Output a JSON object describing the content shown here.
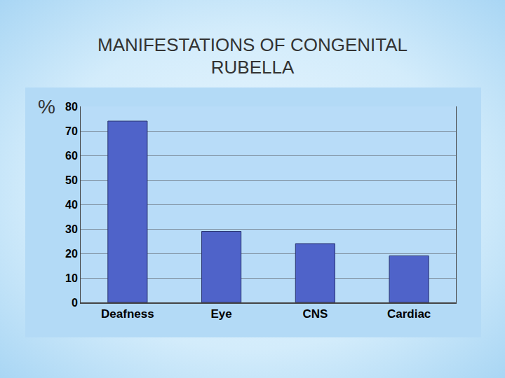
{
  "chart_data": {
    "type": "bar",
    "title": "MANIFESTATIONS OF CONGENITAL RUBELLA",
    "y_label": "%",
    "categories": [
      "Deafness",
      "Eye",
      "CNS",
      "Cardiac"
    ],
    "values": [
      74,
      29,
      24,
      19
    ],
    "color": "#4f63c9",
    "ylim": [
      0,
      80
    ],
    "yticks": [
      0,
      10,
      20,
      30,
      40,
      50,
      60,
      70,
      80
    ],
    "grid": true
  }
}
